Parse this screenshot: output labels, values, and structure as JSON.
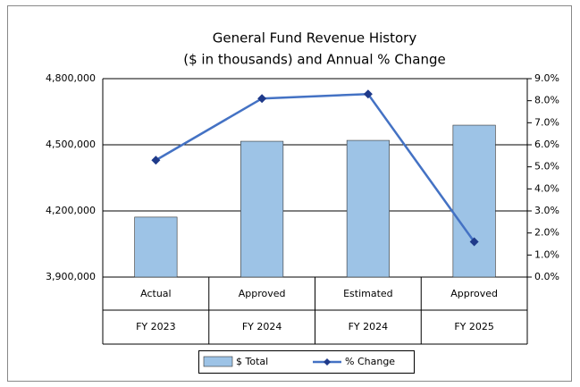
{
  "chart_data": {
    "type": "bar-line",
    "title": "General Fund Revenue History",
    "subtitle": "($ in thousands) and Annual % Change",
    "categories": [
      [
        "Actual",
        "FY 2023"
      ],
      [
        "Approved",
        "FY 2024"
      ],
      [
        "Estimated",
        "FY 2024"
      ],
      [
        "Approved",
        "FY 2025"
      ]
    ],
    "series": [
      {
        "name": "$ Total",
        "type": "bar",
        "color": "#9dc3e6",
        "values": [
          4172000,
          4516000,
          4520000,
          4589000
        ]
      },
      {
        "name": "% Change",
        "type": "line",
        "axis": "y2",
        "color": "#4472c4",
        "marker_color": "#1f3a8a",
        "values": [
          5.3,
          8.1,
          8.3,
          1.6
        ]
      }
    ],
    "ylim": [
      3900000,
      4800000
    ],
    "yticks": [
      {
        "value": 3900000,
        "label": "3,900,000"
      },
      {
        "value": 4200000,
        "label": "4,200,000"
      },
      {
        "value": 4500000,
        "label": "4,500,000"
      },
      {
        "value": 4800000,
        "label": "4,800,000"
      }
    ],
    "y2lim": [
      0,
      9
    ],
    "y2ticks": [
      {
        "value": 0,
        "label": "0.0%"
      },
      {
        "value": 1,
        "label": "1.0%"
      },
      {
        "value": 2,
        "label": "2.0%"
      },
      {
        "value": 3,
        "label": "3.0%"
      },
      {
        "value": 4,
        "label": "4.0%"
      },
      {
        "value": 5,
        "label": "5.0%"
      },
      {
        "value": 6,
        "label": "6.0%"
      },
      {
        "value": 7,
        "label": "7.0%"
      },
      {
        "value": 8,
        "label": "8.0%"
      },
      {
        "value": 9,
        "label": "9.0%"
      }
    ],
    "grid": true,
    "legend": "bottom"
  }
}
